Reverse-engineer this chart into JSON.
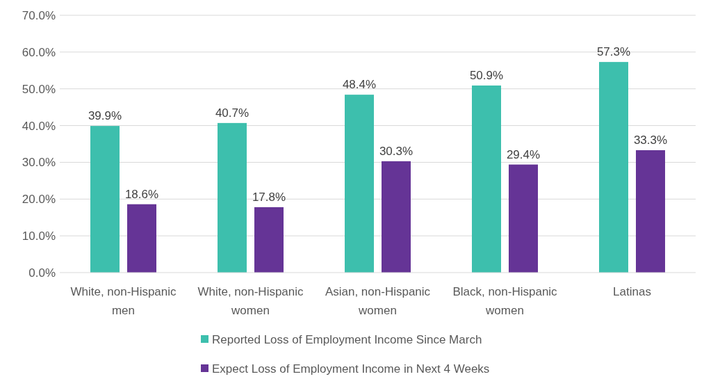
{
  "chart_data": {
    "type": "bar",
    "categories": [
      "White, non-Hispanic men",
      "White, non-Hispanic women",
      "Asian, non-Hispanic women",
      "Black, non-Hispanic women",
      "Latinas"
    ],
    "series": [
      {
        "name": "Reported Loss of Employment Income Since March",
        "color": "#3dbfad",
        "values": [
          39.9,
          40.7,
          48.4,
          50.9,
          57.3
        ],
        "value_labels": [
          "39.9%",
          "40.7%",
          "48.4%",
          "50.9%",
          "57.3%"
        ]
      },
      {
        "name": "Expect Loss of Employment Income in Next 4 Weeks",
        "color": "#653496",
        "values": [
          18.6,
          17.8,
          30.3,
          29.4,
          33.3
        ],
        "value_labels": [
          "18.6%",
          "17.8%",
          "30.3%",
          "29.4%",
          "33.3%"
        ]
      }
    ],
    "ylim": [
      0,
      70
    ],
    "yticks": [
      {
        "value": 0,
        "label": "0.0%"
      },
      {
        "value": 10,
        "label": "10.0%"
      },
      {
        "value": 20,
        "label": "20.0%"
      },
      {
        "value": 30,
        "label": "30.0%"
      },
      {
        "value": 40,
        "label": "40.0%"
      },
      {
        "value": 50,
        "label": "50.0%"
      },
      {
        "value": 60,
        "label": "60.0%"
      },
      {
        "value": 70,
        "label": "70.0%"
      }
    ],
    "grid": "y",
    "legend": "bottom"
  }
}
